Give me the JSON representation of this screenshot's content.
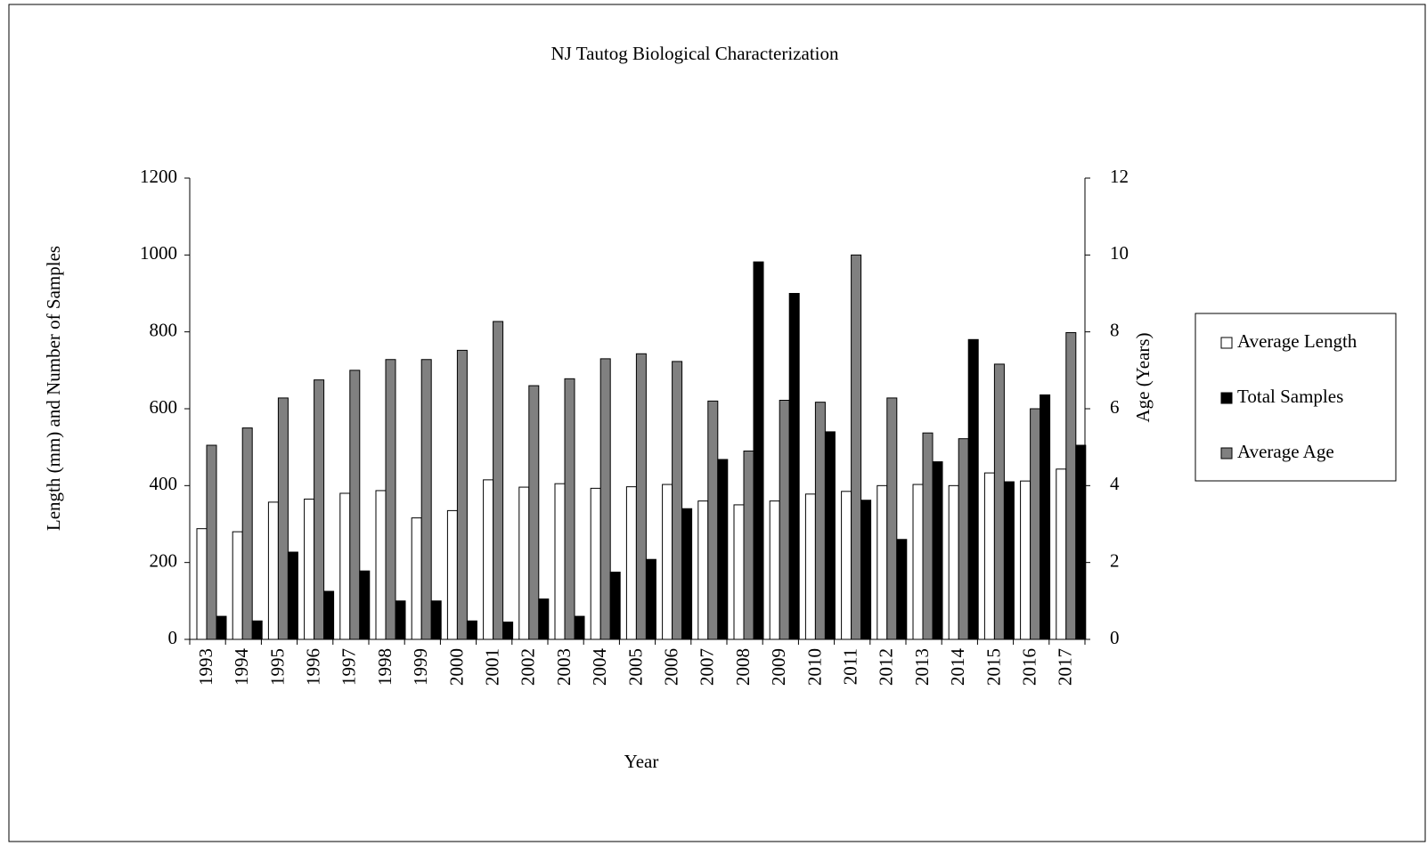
{
  "chart_data": {
    "type": "bar",
    "title": "NJ Tautog Biological Characterization",
    "x_label": "Year",
    "y_label": "Length (mm) and Number of Samples",
    "y2_label": "Age (Years)",
    "categories": [
      "1993",
      "1994",
      "1995",
      "1996",
      "1997",
      "1998",
      "1999",
      "2000",
      "2001",
      "2002",
      "2003",
      "2004",
      "2005",
      "2006",
      "2007",
      "2008",
      "2009",
      "2010",
      "2011",
      "2012",
      "2013",
      "2014",
      "2015",
      "2016",
      "2017"
    ],
    "series": [
      {
        "name": "Average Length",
        "color": "#ffffff",
        "values": [
          288,
          280,
          357,
          365,
          380,
          387,
          316,
          335,
          415,
          396,
          405,
          393,
          397,
          403,
          360,
          350,
          360,
          378,
          385,
          400,
          403,
          400,
          433,
          412,
          443
        ]
      },
      {
        "name": "Total Samples",
        "color": "#000000",
        "values": [
          60,
          48,
          227,
          125,
          178,
          100,
          100,
          48,
          45,
          105,
          60,
          175,
          208,
          340,
          468,
          982,
          900,
          540,
          362,
          260,
          462,
          780,
          410,
          636,
          505
        ]
      },
      {
        "name": "Average Age",
        "color": "#808080",
        "axis": "y2",
        "values": [
          5.05,
          5.5,
          6.28,
          6.75,
          7.0,
          7.28,
          7.28,
          7.52,
          8.27,
          6.6,
          6.78,
          7.3,
          7.43,
          7.23,
          6.2,
          4.9,
          6.22,
          6.17,
          10.0,
          6.28,
          5.37,
          5.22,
          7.16,
          6.0,
          7.98
        ]
      }
    ],
    "ylim": [
      0,
      1200
    ],
    "yticks": [
      0,
      200,
      400,
      600,
      800,
      1000,
      1200
    ],
    "y2lim": [
      0,
      12
    ],
    "y2ticks": [
      0,
      2,
      4,
      6,
      8,
      10,
      12
    ],
    "legend": "right",
    "grid": false
  }
}
